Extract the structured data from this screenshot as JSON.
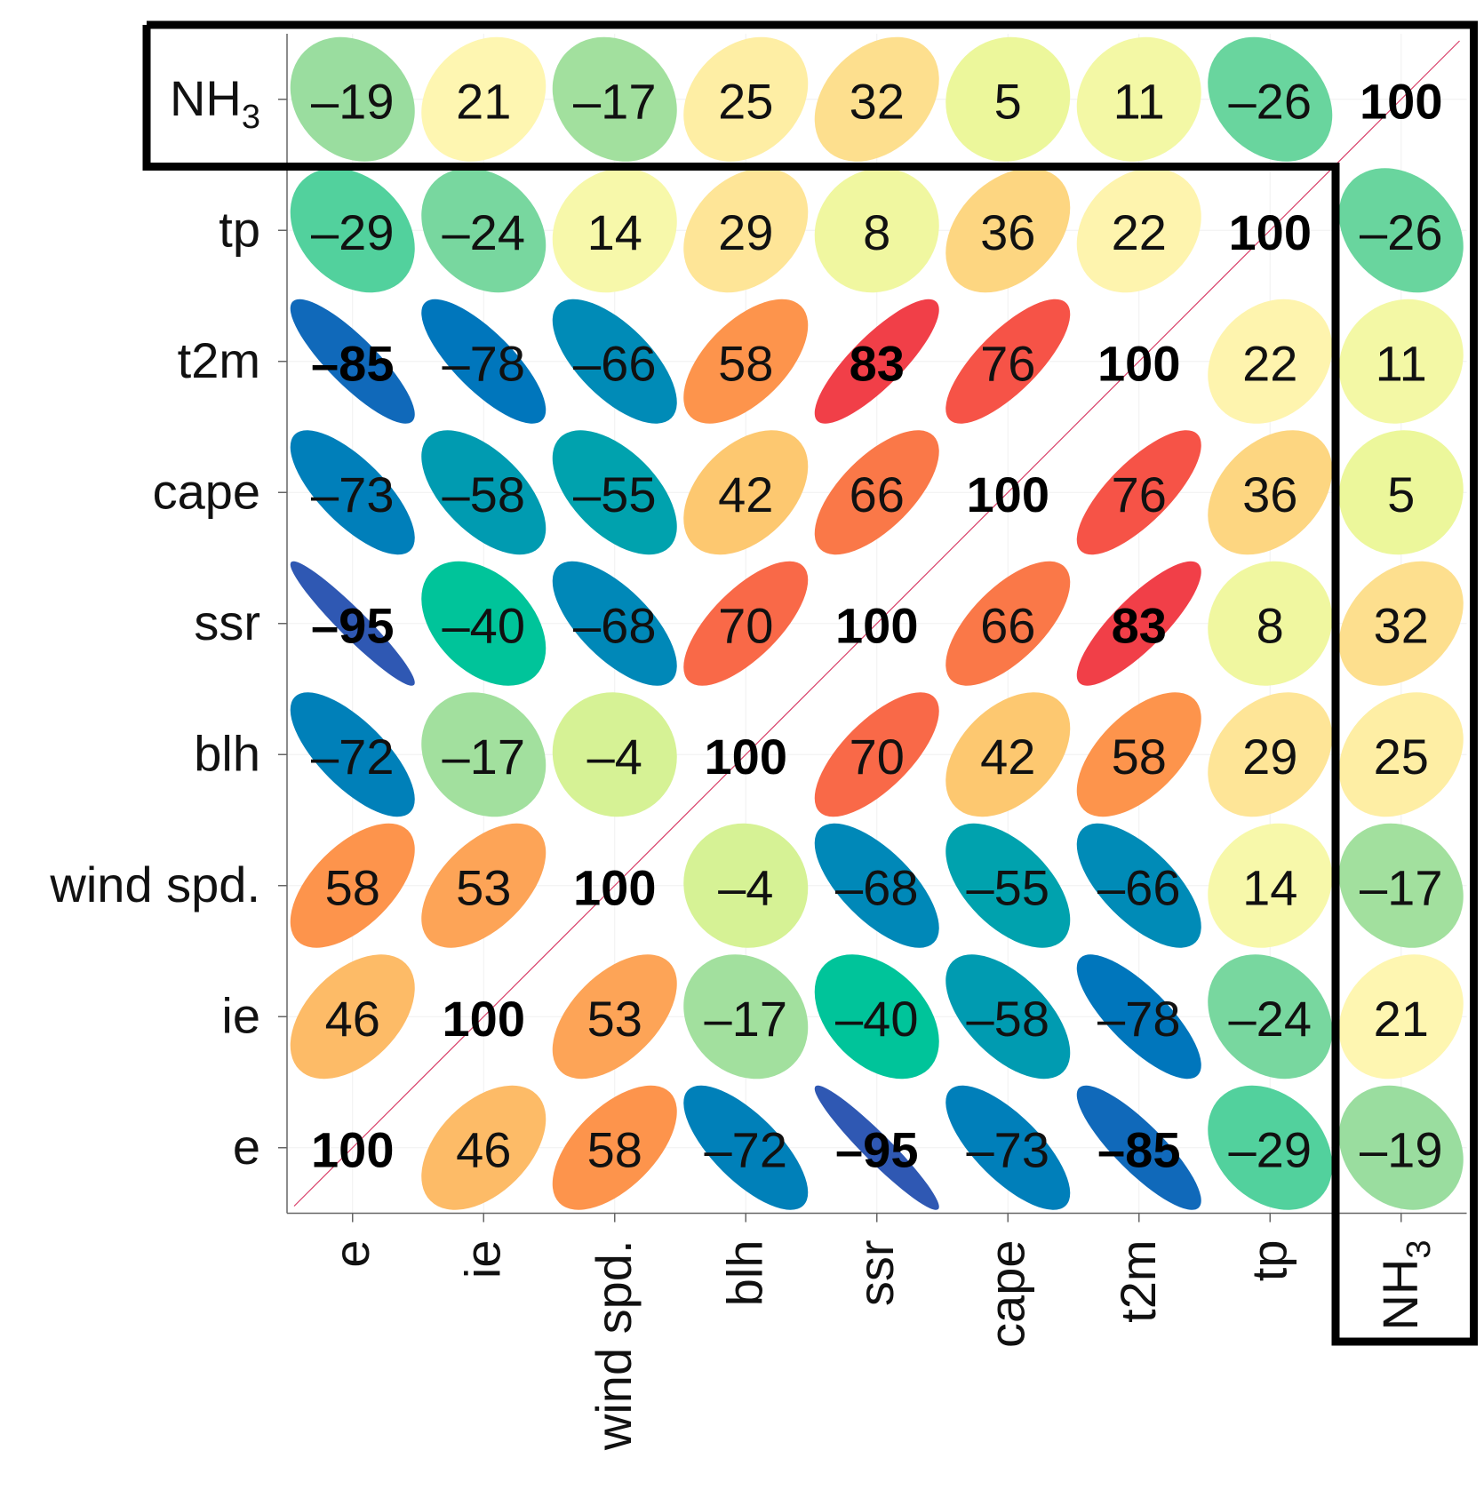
{
  "chart_data": {
    "type": "heatmap",
    "subtype": "correlation-ellipse-matrix",
    "x_labels": [
      "e",
      "ie",
      "wind spd.",
      "blh",
      "ssr",
      "cape",
      "t2m",
      "tp",
      "NH3"
    ],
    "y_labels_top_to_bottom": [
      "NH3",
      "tp",
      "t2m",
      "cape",
      "ssr",
      "blh",
      "wind spd.",
      "ie",
      "e"
    ],
    "x_label_display": [
      "e",
      "ie",
      "wind spd.",
      "blh",
      "ssr",
      "cape",
      "t2m",
      "tp",
      "NH₃"
    ],
    "y_label_display": [
      "NH₃",
      "tp",
      "t2m",
      "cape",
      "ssr",
      "blh",
      "wind spd.",
      "ie",
      "e"
    ],
    "values_rows_top_to_bottom": [
      [
        -19,
        21,
        -17,
        25,
        32,
        5,
        11,
        -26,
        100
      ],
      [
        -29,
        -24,
        14,
        29,
        8,
        36,
        22,
        100,
        -26
      ],
      [
        -85,
        -78,
        -66,
        58,
        83,
        76,
        100,
        22,
        11
      ],
      [
        -73,
        -58,
        -55,
        42,
        66,
        100,
        76,
        36,
        5
      ],
      [
        -95,
        -40,
        -68,
        70,
        100,
        66,
        83,
        8,
        32
      ],
      [
        -72,
        -17,
        -4,
        100,
        70,
        42,
        58,
        29,
        25
      ],
      [
        58,
        53,
        100,
        -4,
        -68,
        -55,
        -66,
        14,
        -17
      ],
      [
        46,
        100,
        53,
        -17,
        -40,
        -58,
        -78,
        -24,
        21
      ],
      [
        100,
        46,
        58,
        -72,
        -95,
        -73,
        -85,
        -29,
        -19
      ]
    ],
    "value_range": [
      -100,
      100
    ],
    "value_scale": "correlation x 100",
    "highlighted_variable": "NH3",
    "colors": {
      "scale": [
        "#3f4fb0",
        "#0072bd",
        "#0096b4",
        "#00c49a",
        "#96dca0",
        "#e6f792",
        "#fef8b4",
        "#fdce74",
        "#fd8e48",
        "#f44447",
        "#e0224e"
      ],
      "text_bold": "#000000",
      "text_normal": "#111111",
      "diagonal_line": "#d9426b",
      "highlight_frame": "#000000"
    }
  }
}
